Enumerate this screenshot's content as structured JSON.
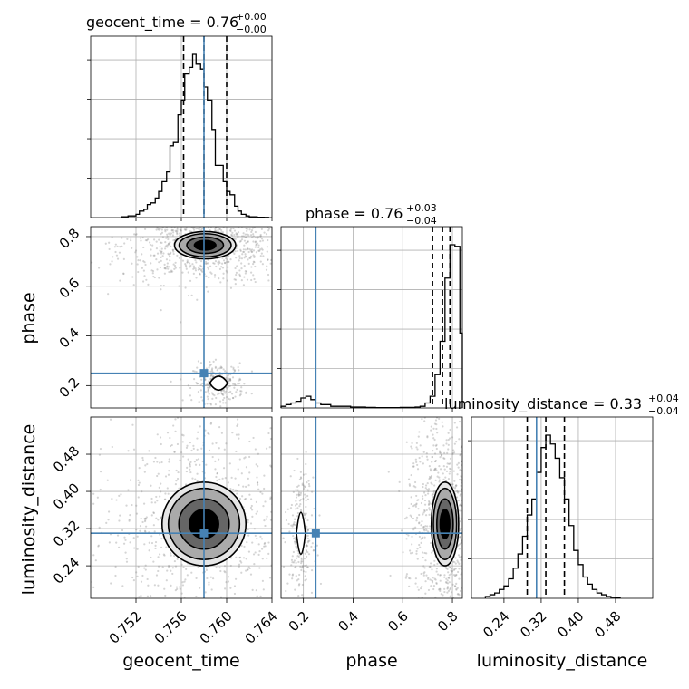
{
  "chart_data": {
    "type": "corner",
    "parameters": [
      "geocent_time",
      "phase",
      "luminosity_distance"
    ],
    "truths": {
      "geocent_time": 0.758,
      "phase": 0.25,
      "luminosity_distance": 0.31
    },
    "colors": {
      "truth": "#4682b4",
      "hist": "#000000",
      "grid": "#b0b0b0",
      "samples": "#888888"
    },
    "grid": true,
    "ranges": {
      "geocent_time": [
        0.748,
        0.764
      ],
      "phase": [
        0.11,
        0.84
      ],
      "luminosity_distance": [
        0.17,
        0.56
      ]
    },
    "ticks": {
      "geocent_time": [
        "0.752",
        "0.756",
        "0.760",
        "0.764"
      ],
      "phase": [
        "0.2",
        "0.4",
        "0.6",
        "0.8"
      ],
      "luminosity_distance": [
        "0.24",
        "0.32",
        "0.40",
        "0.48"
      ]
    },
    "titles": {
      "geocent_time": {
        "text": "geocent_time = 0.76",
        "sup": "+0.00",
        "sub": "−0.00"
      },
      "phase": {
        "text": "phase = 0.76",
        "sup": "+0.03",
        "sub": "−0.04"
      },
      "luminosity_distance": {
        "text": "luminosity_distance = 0.33",
        "sup": "+0.04",
        "sub": "−0.04"
      }
    },
    "quantiles": {
      "geocent_time": [
        0.7562,
        0.758,
        0.76
      ],
      "phase": [
        0.72,
        0.76,
        0.79
      ],
      "luminosity_distance": [
        0.29,
        0.33,
        0.37
      ]
    },
    "histograms": {
      "geocent_time": {
        "edges": [
          0.7507,
          0.751,
          0.7513,
          0.7517,
          0.752,
          0.7523,
          0.7527,
          0.753,
          0.7533,
          0.7537,
          0.754,
          0.7543,
          0.7547,
          0.755,
          0.7553,
          0.7557,
          0.756,
          0.7563,
          0.7567,
          0.757,
          0.7573,
          0.7577,
          0.758,
          0.7583,
          0.7587,
          0.759,
          0.7593,
          0.7597,
          0.76,
          0.7603,
          0.7607,
          0.761,
          0.7613,
          0.7617,
          0.762,
          0.7623,
          0.7627,
          0.763,
          0.7633,
          0.7637
        ],
        "values": [
          0.005,
          0.005,
          0.01,
          0.01,
          0.02,
          0.04,
          0.05,
          0.08,
          0.09,
          0.12,
          0.16,
          0.22,
          0.28,
          0.44,
          0.46,
          0.63,
          0.72,
          0.88,
          0.92,
          1.0,
          0.94,
          0.91,
          0.8,
          0.72,
          0.54,
          0.32,
          0.32,
          0.22,
          0.16,
          0.14,
          0.07,
          0.04,
          0.02,
          0.01,
          0.005,
          0.005,
          0.002,
          0.002,
          0.001
        ]
      },
      "phase": {
        "edges": [
          0.11,
          0.13,
          0.15,
          0.17,
          0.19,
          0.21,
          0.23,
          0.25,
          0.27,
          0.29,
          0.31,
          0.33,
          0.35,
          0.37,
          0.39,
          0.41,
          0.43,
          0.45,
          0.47,
          0.49,
          0.51,
          0.53,
          0.55,
          0.57,
          0.59,
          0.61,
          0.63,
          0.65,
          0.67,
          0.69,
          0.71,
          0.73,
          0.75,
          0.77,
          0.79,
          0.81,
          0.83,
          0.84
        ],
        "values": [
          0.01,
          0.02,
          0.03,
          0.04,
          0.06,
          0.07,
          0.05,
          0.03,
          0.02,
          0.02,
          0.01,
          0.01,
          0.01,
          0.01,
          0.005,
          0.005,
          0.005,
          0.003,
          0.003,
          0.002,
          0.002,
          0.002,
          0.002,
          0.002,
          0.003,
          0.003,
          0.003,
          0.005,
          0.01,
          0.03,
          0.07,
          0.2,
          0.4,
          0.78,
          0.98,
          0.97,
          0.45
        ]
      },
      "luminosity_distance": {
        "edges": [
          0.2,
          0.21,
          0.22,
          0.23,
          0.24,
          0.25,
          0.26,
          0.27,
          0.28,
          0.29,
          0.3,
          0.31,
          0.32,
          0.33,
          0.34,
          0.35,
          0.36,
          0.37,
          0.38,
          0.39,
          0.4,
          0.41,
          0.42,
          0.43,
          0.44,
          0.45,
          0.46,
          0.47,
          0.48,
          0.49
        ],
        "values": [
          0.01,
          0.02,
          0.03,
          0.05,
          0.07,
          0.11,
          0.17,
          0.25,
          0.35,
          0.47,
          0.56,
          0.71,
          0.85,
          0.92,
          0.87,
          0.79,
          0.68,
          0.56,
          0.41,
          0.27,
          0.19,
          0.12,
          0.08,
          0.05,
          0.03,
          0.02,
          0.01,
          0.005,
          0.003
        ]
      }
    },
    "contour_blobs": {
      "phase_vs_geocent_time": [
        {
          "cx": 0.7581,
          "cy": 0.765,
          "rx": 0.0027,
          "ry": 0.055,
          "levels": [
            0.35,
            0.6,
            0.85,
            1.0
          ]
        },
        {
          "cx": 0.7593,
          "cy": 0.21,
          "rx": 0.0008,
          "ry": 0.028,
          "levels": [
            1.0
          ]
        }
      ],
      "luminosity_distance_vs_geocent_time": [
        {
          "cx": 0.758,
          "cy": 0.33,
          "rx": 0.0037,
          "ry": 0.09,
          "levels": [
            0.35,
            0.6,
            0.85,
            1.0
          ]
        }
      ],
      "luminosity_distance_vs_phase": [
        {
          "cx": 0.77,
          "cy": 0.33,
          "rx": 0.055,
          "ry": 0.09,
          "levels": [
            0.35,
            0.6,
            0.85,
            1.0
          ]
        },
        {
          "cx": 0.19,
          "cy": 0.31,
          "rx": 0.018,
          "ry": 0.045,
          "levels": [
            1.0
          ]
        }
      ]
    }
  }
}
